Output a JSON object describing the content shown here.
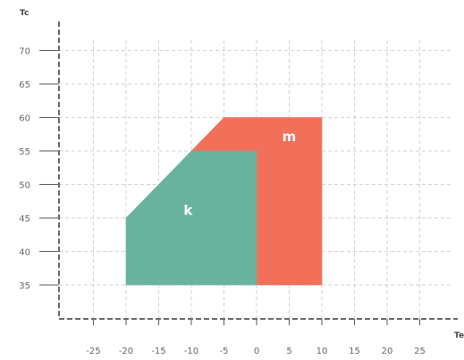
{
  "chart_data": {
    "type": "area",
    "xlabel": "Te",
    "ylabel": "Tc",
    "xlim": [
      -30,
      30
    ],
    "ylim": [
      30,
      75
    ],
    "x_ticks": [
      "-25",
      "-20",
      "-15",
      "-10",
      "-5",
      "0",
      "5",
      "10",
      "15",
      "20",
      "25"
    ],
    "y_ticks": [
      "35",
      "40",
      "45",
      "50",
      "55",
      "60",
      "65",
      "70"
    ],
    "grid": true,
    "regions": [
      {
        "label": "m",
        "color": "#f2705a",
        "polygon": [
          [
            -10,
            55
          ],
          [
            -5,
            60
          ],
          [
            10,
            60
          ],
          [
            10,
            35
          ],
          [
            0,
            35
          ],
          [
            0,
            55
          ]
        ],
        "label_at": [
          5,
          56.5
        ]
      },
      {
        "label": "k",
        "color": "#69b39e",
        "polygon": [
          [
            -20,
            35
          ],
          [
            0,
            35
          ],
          [
            0,
            55
          ],
          [
            -10,
            55
          ],
          [
            -20,
            45
          ]
        ],
        "label_at": [
          -10.5,
          45.5
        ]
      }
    ]
  }
}
